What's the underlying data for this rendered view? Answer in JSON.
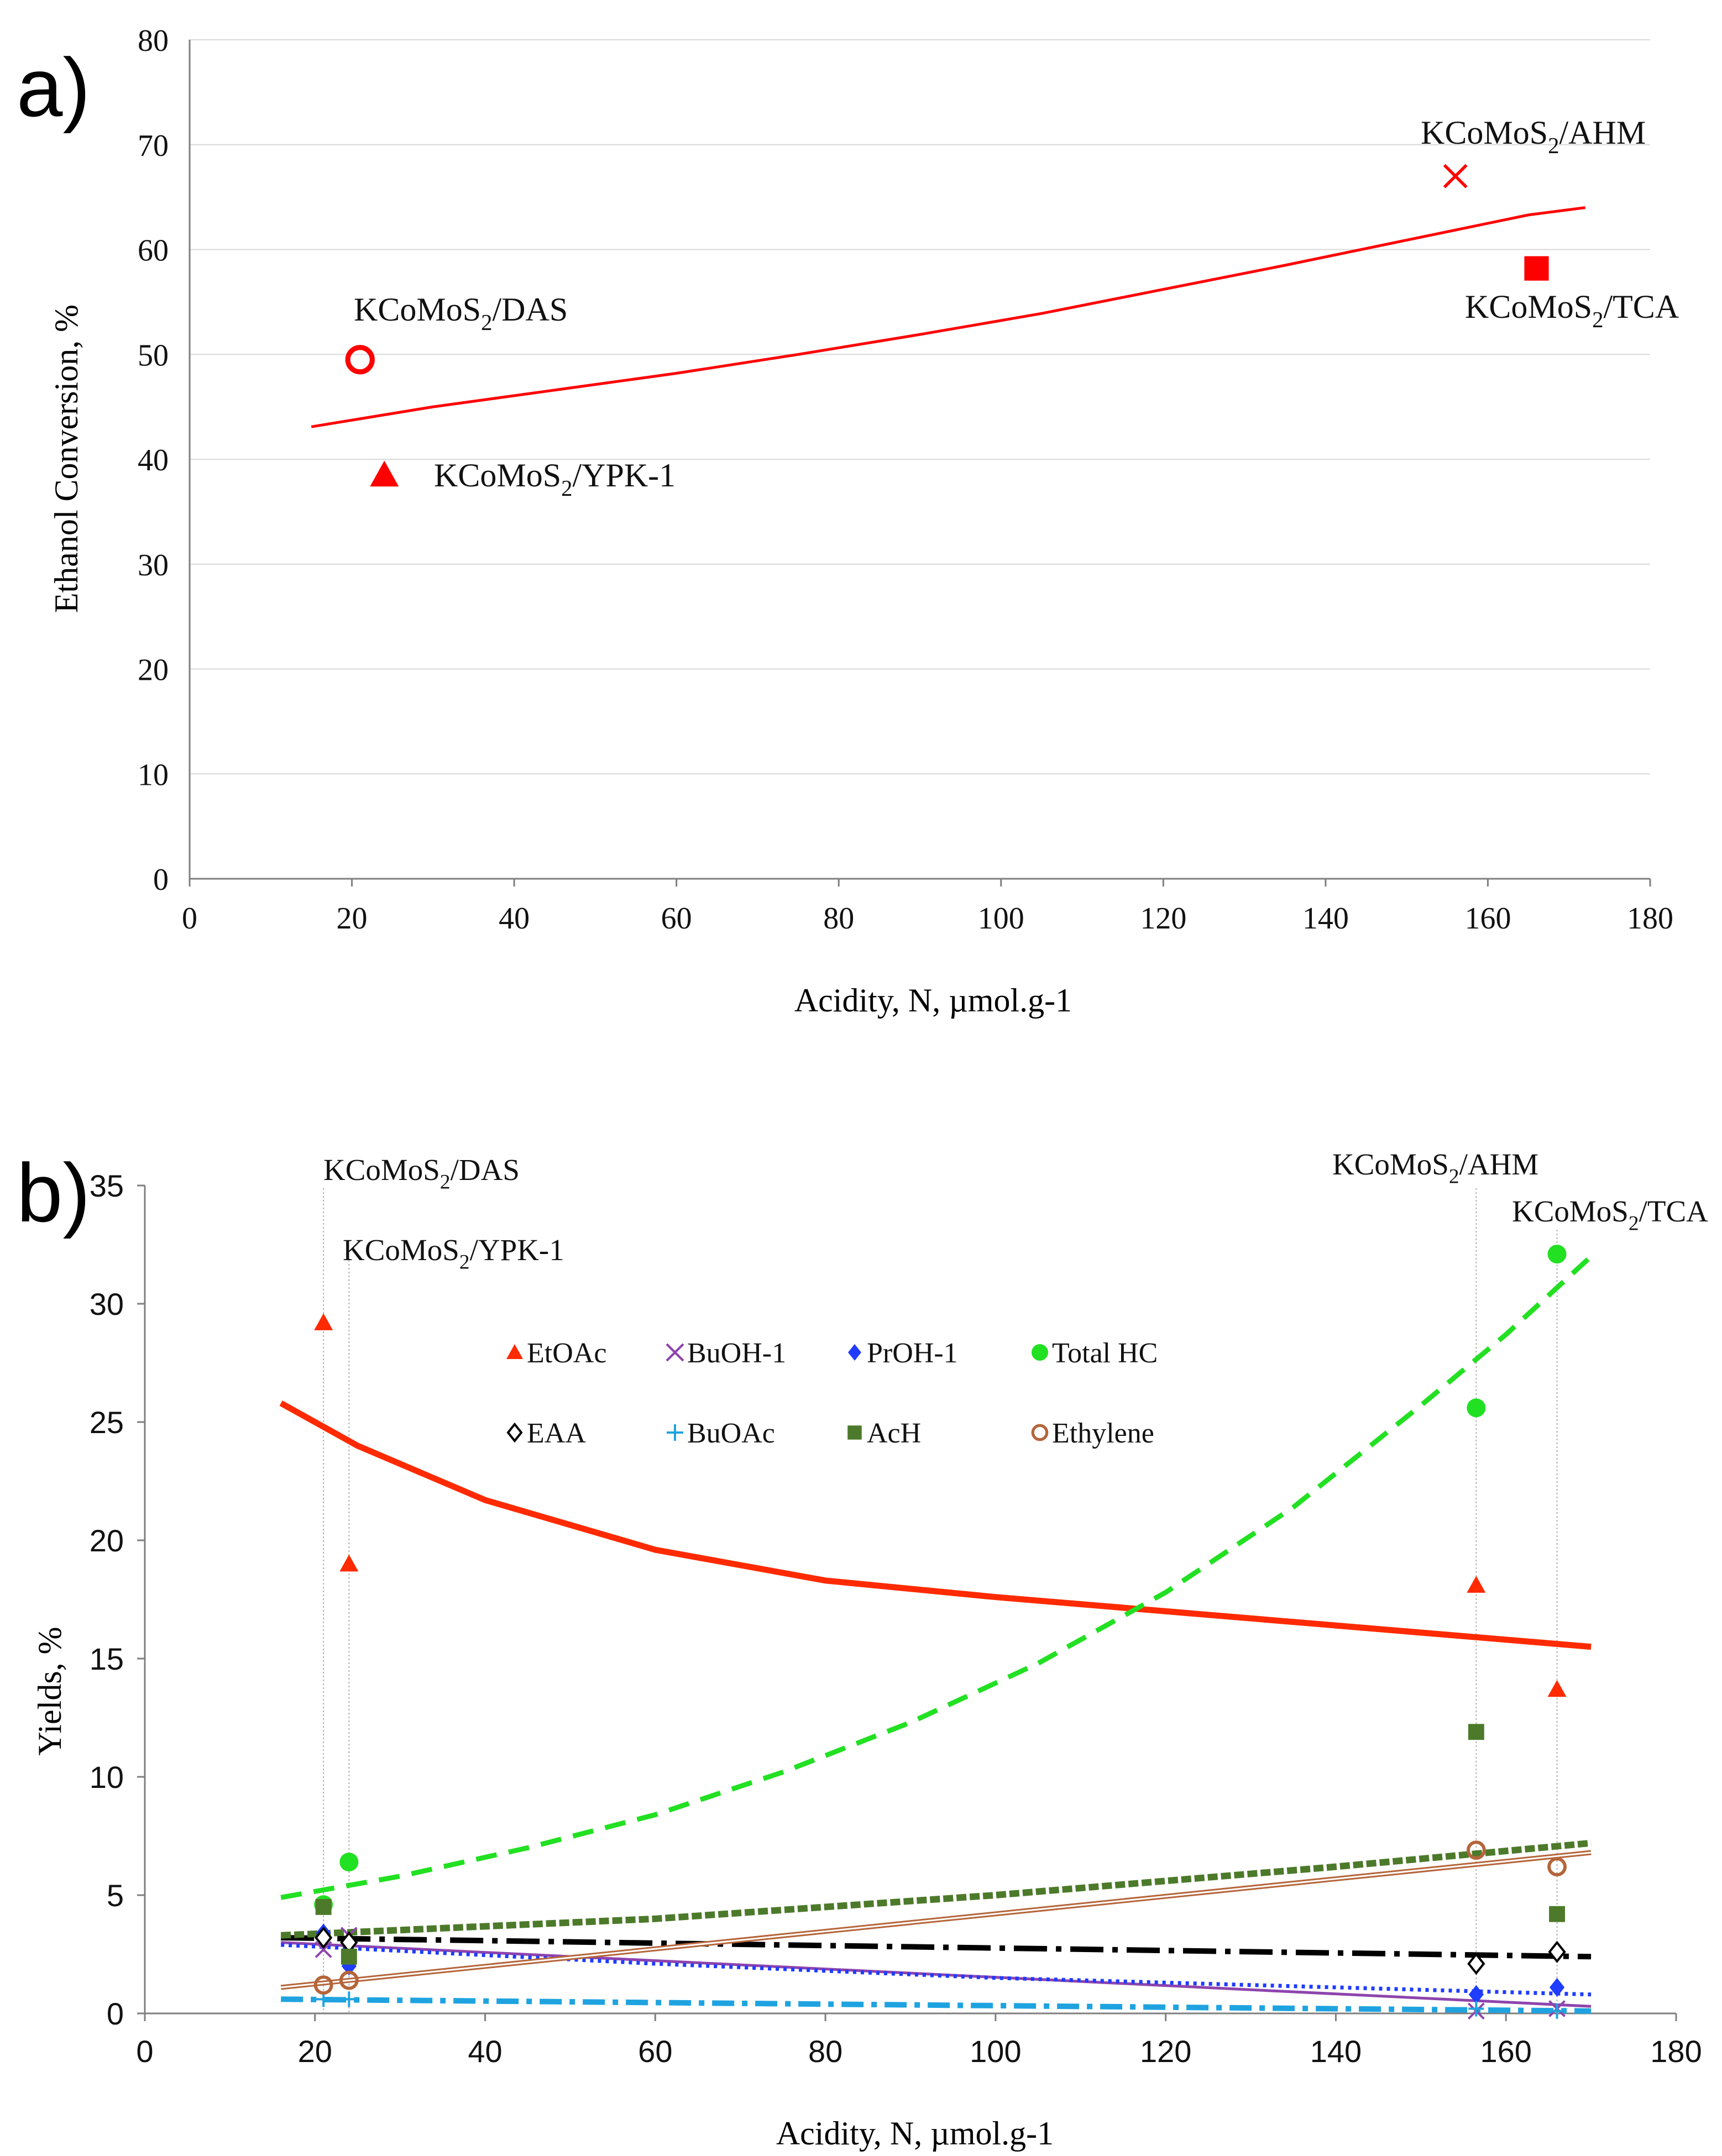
{
  "panel_a_label": "a)",
  "panel_b_label": "b)",
  "colors": {
    "red": "#ff0000",
    "orange_red": "#ff2a00",
    "purple": "#8e44ad",
    "blue": "#1f3cff",
    "green": "#22e022",
    "black": "#000000",
    "cyan": "#1fa3e0",
    "olive": "#4c7a2a",
    "brown": "#b5653a",
    "grid": "#d9d9d9",
    "axis": "#7f7f7f"
  },
  "chart_data": [
    {
      "id": "a",
      "type": "scatter",
      "title": "",
      "xlabel": "Acidity, N, µmol.g-1",
      "ylabel": "Ethanol Conversion, %",
      "xlim": [
        0,
        180
      ],
      "ylim": [
        0,
        80
      ],
      "xticks": [
        0,
        20,
        40,
        60,
        80,
        100,
        120,
        140,
        160,
        180
      ],
      "yticks": [
        0,
        10,
        20,
        30,
        40,
        50,
        60,
        70,
        80
      ],
      "grid": true,
      "points": [
        {
          "name": "KCoMoS2/DAS",
          "marker": "open-circle",
          "x": 21,
          "y": 49.5
        },
        {
          "name": "KCoMoS2/YPK-1",
          "marker": "triangle",
          "x": 24,
          "y": 38.5
        },
        {
          "name": "KCoMoS2/AHM",
          "marker": "x",
          "x": 156,
          "y": 67
        },
        {
          "name": "KCoMoS2/TCA",
          "marker": "square",
          "x": 166,
          "y": 58.2
        }
      ],
      "trendline": {
        "type": "exponential",
        "x": [
          15,
          30,
          45,
          60,
          75,
          90,
          105,
          120,
          135,
          150,
          165,
          172
        ],
        "y": [
          43.1,
          45.0,
          46.6,
          48.2,
          50.0,
          51.9,
          53.9,
          56.2,
          58.5,
          60.9,
          63.3,
          64.0
        ]
      },
      "labels": [
        {
          "text": "KCoMoS",
          "sub": "2",
          "rest": "/DAS"
        },
        {
          "text": "KCoMoS",
          "sub": "2",
          "rest": "/YPK-1"
        },
        {
          "text": "KCoMoS",
          "sub": "2",
          "rest": "/AHM"
        },
        {
          "text": "KCoMoS",
          "sub": "2",
          "rest": "/TCA"
        }
      ]
    },
    {
      "id": "b",
      "type": "scatter",
      "title": "",
      "xlabel": "Acidity, N, µmol.g-1",
      "ylabel": "Yields, %",
      "xlim": [
        0,
        180
      ],
      "ylim": [
        0,
        35
      ],
      "xticks": [
        0,
        20,
        40,
        60,
        80,
        100,
        120,
        140,
        160,
        180
      ],
      "yticks": [
        0,
        5,
        10,
        15,
        20,
        25,
        30,
        35
      ],
      "grid": false,
      "catalysts": [
        {
          "name": "KCoMoS2/DAS",
          "x": 21
        },
        {
          "name": "KCoMoS2/YPK-1",
          "x": 24
        },
        {
          "name": "KCoMoS2/AHM",
          "x": 156.5
        },
        {
          "name": "KCoMoS2/TCA",
          "x": 166
        }
      ],
      "catalyst_labels": [
        {
          "text": "KCoMoS",
          "sub": "2",
          "rest": "/DAS"
        },
        {
          "text": "KCoMoS",
          "sub": "2",
          "rest": "/YPK-1"
        },
        {
          "text": "KCoMoS",
          "sub": "2",
          "rest": "/AHM"
        },
        {
          "text": "KCoMoS",
          "sub": "2",
          "rest": "/TCA"
        }
      ],
      "series": [
        {
          "name": "EtOAc",
          "marker": "triangle",
          "color": "#ff2a00",
          "x": [
            21,
            24,
            156.5,
            166
          ],
          "y": [
            29.2,
            19.0,
            18.1,
            13.7
          ],
          "trend": {
            "style": "solid-thick",
            "x": [
              16,
              25,
              40,
              60,
              80,
              100,
              120,
              140,
              160,
              170
            ],
            "y": [
              25.8,
              24.0,
              21.7,
              19.6,
              18.3,
              17.6,
              17.0,
              16.4,
              15.8,
              15.5
            ]
          }
        },
        {
          "name": "BuOH-1",
          "marker": "x",
          "color": "#8e44ad",
          "x": [
            21,
            24,
            156.5,
            166
          ],
          "y": [
            2.7,
            3.3,
            0.1,
            0.2
          ],
          "trend": {
            "style": "solid-thin",
            "x": [
              16,
              170
            ],
            "y": [
              3.0,
              0.3
            ]
          }
        },
        {
          "name": "PrOH-1",
          "marker": "diamond",
          "color": "#1f3cff",
          "x": [
            21,
            24,
            156.5,
            166
          ],
          "y": [
            3.4,
            2.0,
            0.8,
            1.1
          ],
          "trend": {
            "style": "dotted",
            "x": [
              16,
              60,
              100,
              140,
              170
            ],
            "y": [
              2.9,
              2.1,
              1.5,
              1.1,
              0.8
            ]
          }
        },
        {
          "name": "Total HC",
          "marker": "circle",
          "color": "#22e022",
          "x": [
            21,
            24,
            156.5,
            166
          ],
          "y": [
            4.6,
            6.4,
            25.6,
            32.1
          ],
          "trend": {
            "style": "dashed",
            "x": [
              16,
              30,
              45,
              60,
              75,
              90,
              105,
              120,
              135,
              150,
              160,
              170
            ],
            "y": [
              4.9,
              5.8,
              7.0,
              8.4,
              10.2,
              12.3,
              14.8,
              17.8,
              21.4,
              25.7,
              28.7,
              32.0
            ]
          }
        },
        {
          "name": "EAA",
          "marker": "open-diamond",
          "color": "#000000",
          "x": [
            21,
            24,
            156.5,
            166
          ],
          "y": [
            3.2,
            3.0,
            2.1,
            2.6
          ],
          "trend": {
            "style": "long-dash-dot",
            "x": [
              16,
              170
            ],
            "y": [
              3.2,
              2.4
            ]
          }
        },
        {
          "name": "BuOAc",
          "marker": "plus",
          "color": "#1fa3e0",
          "x": [
            21,
            24,
            156.5,
            166
          ],
          "y": [
            0.6,
            0.6,
            0.2,
            0.1
          ],
          "trend": {
            "style": "dash-dot",
            "x": [
              16,
              170
            ],
            "y": [
              0.6,
              0.1
            ]
          }
        },
        {
          "name": "AcH",
          "marker": "square",
          "color": "#4c7a2a",
          "x": [
            21,
            24,
            156.5,
            166
          ],
          "y": [
            4.5,
            2.4,
            11.9,
            4.2
          ],
          "trend": {
            "style": "dashed-thick",
            "x": [
              16,
              60,
              100,
              140,
              170
            ],
            "y": [
              3.3,
              4.0,
              5.0,
              6.2,
              7.2
            ]
          }
        },
        {
          "name": "Ethylene",
          "marker": "open-circle",
          "color": "#b5653a",
          "x": [
            21,
            24,
            156.5,
            166
          ],
          "y": [
            1.2,
            1.4,
            6.9,
            6.2
          ],
          "trend": {
            "style": "double",
            "x": [
              16,
              170
            ],
            "y": [
              1.1,
              6.8
            ]
          }
        }
      ],
      "legend_position": "upper-center"
    }
  ]
}
